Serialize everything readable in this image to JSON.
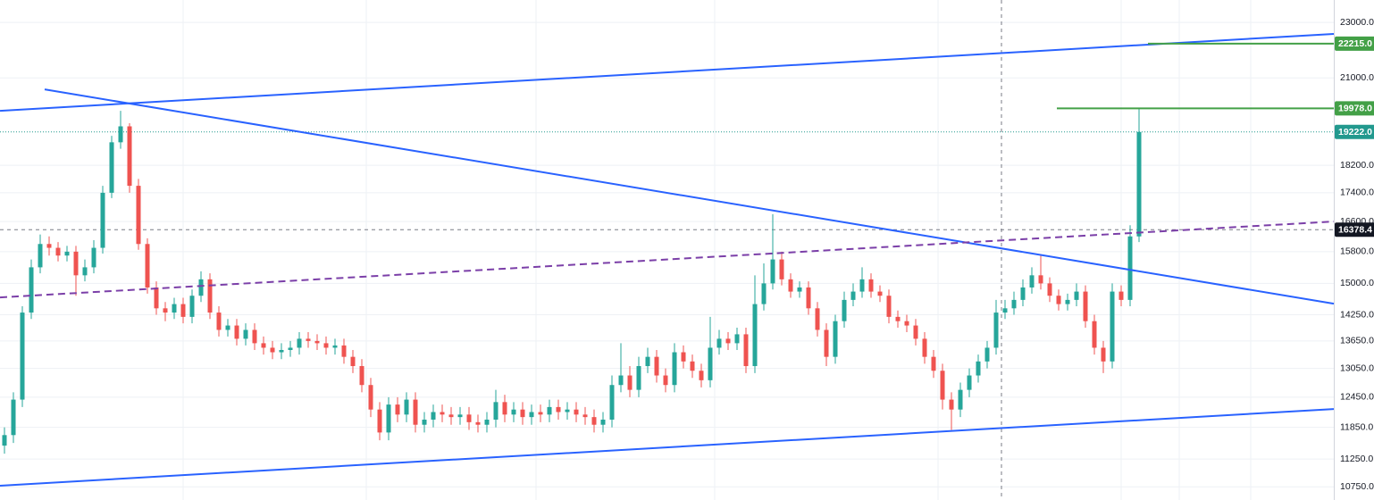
{
  "chart_data": {
    "type": "candlestick",
    "log_scale": true,
    "grid": true,
    "up_color": "#26a69a",
    "down_color": "#ef5350",
    "ylim": [
      10520,
      23860
    ],
    "yticks": [
      {
        "value": 23000,
        "label": "23000.0"
      },
      {
        "value": 21000,
        "label": "21000.0"
      },
      {
        "value": 18200,
        "label": "18200.0"
      },
      {
        "value": 17400,
        "label": "17400.0"
      },
      {
        "value": 16600,
        "label": "16600.0"
      },
      {
        "value": 15800,
        "label": "15800.0"
      },
      {
        "value": 15000,
        "label": "15000.0"
      },
      {
        "value": 14250,
        "label": "14250.0"
      },
      {
        "value": 13650,
        "label": "13650.0"
      },
      {
        "value": 13050,
        "label": "13050.0"
      },
      {
        "value": 12450,
        "label": "12450.0"
      },
      {
        "value": 11850,
        "label": "11850.0"
      },
      {
        "value": 11250,
        "label": "11250.0"
      },
      {
        "value": 10750,
        "label": "10750.0"
      }
    ],
    "open": [
      11500,
      11700,
      12400,
      14300,
      15400,
      16000,
      15900,
      15700,
      15800,
      15200,
      15400,
      15900,
      17400,
      18900,
      19400,
      17600,
      16000,
      14900,
      14400,
      14300,
      14500,
      14200,
      14700,
      15100,
      14300,
      13900,
      14000,
      13700,
      13900,
      13600,
      13500,
      13400,
      13450,
      13500,
      13700,
      13650,
      13600,
      13500,
      13550,
      13300,
      13100,
      12700,
      12200,
      11750,
      12300,
      12100,
      12400,
      11900,
      12000,
      12150,
      12100,
      12050,
      12100,
      11950,
      11900,
      12000,
      12350,
      12100,
      12200,
      12050,
      12150,
      12100,
      12250,
      12150,
      12200,
      12100,
      12050,
      11900,
      12000,
      12700,
      12900,
      12600,
      13100,
      13300,
      12900,
      12700,
      13400,
      13200,
      13000,
      12800,
      13500,
      13700,
      13600,
      13800,
      13100,
      14500,
      15000,
      15600,
      15100,
      14800,
      14900,
      14400,
      13900,
      13300,
      14100,
      14600,
      14800,
      15100,
      14800,
      14700,
      14200,
      14100,
      14000,
      13700,
      13300,
      13000,
      12400,
      12200,
      12600,
      12900,
      13200,
      13500,
      14300,
      14400,
      14600,
      14900,
      15200,
      15000,
      14700,
      14500,
      14600,
      14800,
      14100,
      13500,
      13200,
      14800,
      14600,
      16200
    ],
    "high": [
      11850,
      12550,
      14450,
      15600,
      16250,
      16200,
      16050,
      15950,
      15950,
      15600,
      16100,
      17600,
      19100,
      19900,
      19500,
      17800,
      16150,
      15050,
      14550,
      14650,
      14650,
      14850,
      15300,
      15250,
      14450,
      14150,
      14150,
      14050,
      14050,
      13750,
      13650,
      13600,
      13650,
      13850,
      13850,
      13800,
      13750,
      13700,
      13700,
      13450,
      13250,
      12850,
      12350,
      12450,
      12450,
      12550,
      12550,
      12150,
      12300,
      12300,
      12250,
      12250,
      12250,
      12100,
      12150,
      12600,
      12500,
      12350,
      12350,
      12300,
      12300,
      12400,
      12400,
      12350,
      12350,
      12250,
      12200,
      12150,
      12900,
      13600,
      13100,
      13300,
      13500,
      13450,
      13050,
      13600,
      13550,
      13350,
      13150,
      14200,
      13900,
      13850,
      13950,
      13950,
      15200,
      15500,
      16800,
      15800,
      15250,
      15050,
      15050,
      14550,
      14050,
      14250,
      14800,
      15000,
      15400,
      15250,
      14950,
      14850,
      14350,
      14250,
      14150,
      13850,
      13450,
      13150,
      12550,
      12750,
      13050,
      13350,
      13650,
      14600,
      14600,
      14800,
      15100,
      15400,
      15700,
      15150,
      14850,
      14750,
      15000,
      14950,
      14250,
      13650,
      15000,
      14950,
      16500,
      19978
    ],
    "low": [
      11350,
      11550,
      12250,
      14150,
      15250,
      15700,
      15550,
      15550,
      14700,
      15050,
      15250,
      15750,
      17250,
      18700,
      17400,
      15850,
      14750,
      14250,
      14100,
      14150,
      14050,
      14050,
      14550,
      14150,
      13750,
      13750,
      13550,
      13550,
      13450,
      13350,
      13250,
      13250,
      13300,
      13350,
      13500,
      13450,
      13350,
      13350,
      13150,
      12950,
      12550,
      12050,
      11600,
      11600,
      11950,
      11950,
      11750,
      11750,
      11850,
      11950,
      11900,
      11900,
      11800,
      11750,
      11750,
      11850,
      11950,
      11950,
      11900,
      11900,
      11950,
      11950,
      12000,
      12000,
      11950,
      11900,
      11750,
      11750,
      11850,
      12550,
      12450,
      12450,
      12950,
      12750,
      12550,
      12550,
      13050,
      12850,
      12650,
      12650,
      13350,
      13450,
      13450,
      12950,
      12950,
      14350,
      14850,
      14950,
      14650,
      14650,
      14250,
      13750,
      13100,
      13150,
      13950,
      14450,
      14650,
      14650,
      14550,
      14050,
      13950,
      13850,
      13550,
      13150,
      12850,
      12200,
      11800,
      12050,
      12450,
      12750,
      13050,
      13350,
      14150,
      14250,
      14450,
      14750,
      14850,
      14550,
      14350,
      14350,
      14450,
      13950,
      13350,
      12950,
      13050,
      14450,
      14450,
      16050
    ],
    "close": [
      11700,
      12400,
      14300,
      15400,
      16000,
      15900,
      15700,
      15800,
      15200,
      15400,
      15900,
      17400,
      18900,
      19400,
      17600,
      16000,
      14900,
      14400,
      14300,
      14500,
      14200,
      14700,
      15100,
      14300,
      13900,
      14000,
      13700,
      13900,
      13600,
      13500,
      13400,
      13450,
      13500,
      13700,
      13650,
      13600,
      13500,
      13550,
      13300,
      13100,
      12700,
      12200,
      11750,
      12300,
      12100,
      12400,
      11900,
      12000,
      12150,
      12100,
      12050,
      12100,
      11950,
      11900,
      12000,
      12350,
      12100,
      12200,
      12050,
      12150,
      12100,
      12250,
      12150,
      12200,
      12100,
      12050,
      11900,
      12000,
      12700,
      12900,
      12600,
      13100,
      13300,
      12900,
      12700,
      13400,
      13200,
      13000,
      12800,
      13500,
      13700,
      13600,
      13800,
      13100,
      14500,
      15000,
      15600,
      15100,
      14800,
      14900,
      14400,
      13900,
      13300,
      14100,
      14600,
      14800,
      15100,
      14800,
      14700,
      14200,
      14100,
      14000,
      13700,
      13300,
      13000,
      12400,
      12200,
      12600,
      12900,
      13200,
      13500,
      14300,
      14400,
      14600,
      14900,
      15200,
      15000,
      14700,
      14500,
      14600,
      14800,
      14100,
      13500,
      13200,
      14800,
      14600,
      16200,
      19222
    ],
    "drawings": [
      {
        "color": "#2962ff",
        "style": "solid",
        "x": [
          -0.5,
          148.8
        ],
        "y": [
          19900,
          22570
        ]
      },
      {
        "color": "#2962ff",
        "style": "solid",
        "x": [
          4.5,
          148.8
        ],
        "y": [
          20610,
          14510
        ]
      },
      {
        "color": "#2962ff",
        "style": "solid",
        "x": [
          -0.5,
          148.8
        ],
        "y": [
          10770,
          12210
        ]
      },
      {
        "color": "#7b3fa8",
        "style": "dashed",
        "x": [
          -0.5,
          148.8
        ],
        "y": [
          14660,
          16600
        ]
      },
      {
        "color": "#43a047",
        "style": "solid",
        "x": [
          128,
          148.8
        ],
        "y": [
          22215,
          22215
        ]
      },
      {
        "color": "#43a047",
        "style": "solid",
        "x": [
          117.8,
          148.8
        ],
        "y": [
          19978,
          19978
        ]
      }
    ],
    "crosshair_x": 111.6,
    "price_labels": [
      {
        "value": 22215,
        "label": "22215.0",
        "color": "#43a047",
        "line": "none"
      },
      {
        "value": 19978,
        "label": "19978.0",
        "color": "#43a047",
        "line": "none"
      },
      {
        "value": 19222,
        "label": "19222.0",
        "color": "#22998e",
        "line": "dotted"
      },
      {
        "value": 16378.4,
        "label": "16378.4",
        "color": "#131722",
        "line": "dashed"
      }
    ]
  }
}
